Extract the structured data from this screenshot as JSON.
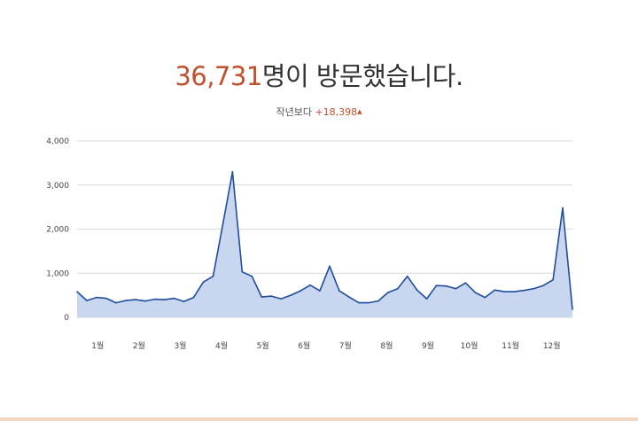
{
  "headline": {
    "count": "36,731",
    "text": "명이 방문했습니다."
  },
  "comparison": {
    "label": "작년보다",
    "delta": "+18,398",
    "arrow_icon": "up-triangle-icon"
  },
  "colors": {
    "accent": "#c1502e",
    "line": "#1f4e9b",
    "fill": "#c5d4ef",
    "grid": "#d9d9d9",
    "text": "#333333"
  },
  "chart_data": {
    "type": "area",
    "title": "",
    "xlabel": "",
    "ylabel": "",
    "ylim": [
      0,
      4000
    ],
    "yticks": [
      0,
      1000,
      2000,
      3000,
      4000
    ],
    "ytick_labels": [
      "0",
      "1,000",
      "2,000",
      "3,000",
      "4,000"
    ],
    "xtick_labels": [
      "1월",
      "2월",
      "3월",
      "4월",
      "5월",
      "6월",
      "7월",
      "8월",
      "9월",
      "10월",
      "11월",
      "12월"
    ],
    "grid": true,
    "series": [
      {
        "values": [
          580,
          380,
          450,
          430,
          330,
          380,
          400,
          370,
          410,
          400,
          430,
          360,
          450,
          800,
          930,
          2100,
          3300,
          1030,
          930,
          460,
          480,
          420,
          500,
          600,
          730,
          600,
          1160,
          600,
          460,
          330,
          330,
          370,
          560,
          650,
          930,
          620,
          420,
          720,
          710,
          650,
          780,
          560,
          450,
          620,
          580,
          580,
          610,
          650,
          720,
          850,
          2480,
          180
        ]
      }
    ]
  }
}
